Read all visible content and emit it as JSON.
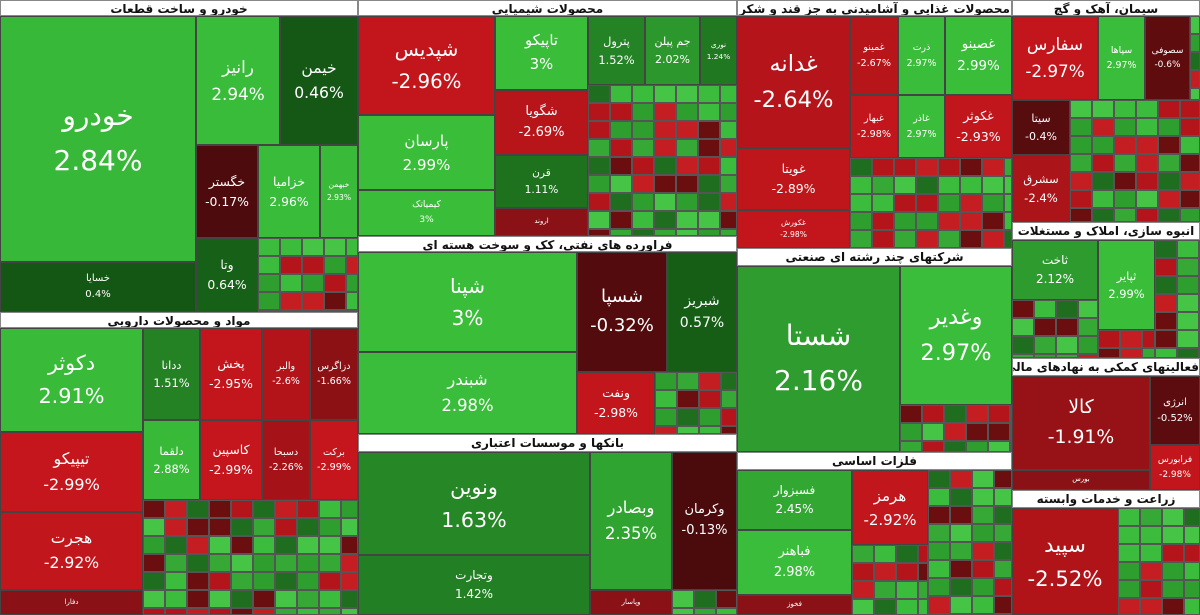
{
  "sectors": [
    {
      "title": "خودرو و ساخت قطعات",
      "tiles": [
        {
          "name": "خودرو",
          "change": "2.84%"
        },
        {
          "name": "رانیز",
          "change": "2.94%"
        },
        {
          "name": "خیمن",
          "change": "0.46%"
        },
        {
          "name": "خگستر",
          "change": "-0.17%"
        },
        {
          "name": "خزامیا",
          "change": "2.96%"
        },
        {
          "name": "خبهمن",
          "change": "2.93%"
        },
        {
          "name": "خسایا",
          "change": "0.4%"
        },
        {
          "name": "وتا",
          "change": "0.64%"
        }
      ]
    },
    {
      "title": "مواد و محصولات دارویی",
      "tiles": [
        {
          "name": "دکوثر",
          "change": "2.91%"
        },
        {
          "name": "تیپیکو",
          "change": "-2.99%"
        },
        {
          "name": "هجرت",
          "change": "-2.92%"
        },
        {
          "name": "دفارا"
        },
        {
          "name": "ددانا",
          "change": "1.51%"
        },
        {
          "name": "پخش",
          "change": "-2.95%"
        },
        {
          "name": "والبر",
          "change": "-2.6%"
        },
        {
          "name": "دزاگرس",
          "change": "-1.66%"
        },
        {
          "name": "دلقما",
          "change": "2.88%"
        },
        {
          "name": "کاسپین",
          "change": "-2.99%"
        },
        {
          "name": "دسبحا",
          "change": "-2.26%"
        },
        {
          "name": "برکت",
          "change": "-2.99%"
        }
      ]
    },
    {
      "title": "محصولات شیمیایی",
      "tiles": [
        {
          "name": "شپدیس",
          "change": "-2.96%"
        },
        {
          "name": "پارسان",
          "change": "2.99%"
        },
        {
          "name": "کیمیاتک",
          "change": "3%"
        },
        {
          "name": "تاپیکو",
          "change": "3%"
        },
        {
          "name": "شگویا",
          "change": "-2.69%"
        },
        {
          "name": "قرن",
          "change": "1.11%"
        },
        {
          "name": "اروند"
        },
        {
          "name": "پترول",
          "change": "1.52%"
        },
        {
          "name": "جم پیلن",
          "change": "2.02%"
        },
        {
          "name": "نوری",
          "change": "1.24%"
        }
      ]
    },
    {
      "title": "فراورده های نفتی، کک و سوخت هسته ای",
      "tiles": [
        {
          "name": "شپنا",
          "change": "3%"
        },
        {
          "name": "شبندر",
          "change": "2.98%"
        },
        {
          "name": "شسپا",
          "change": "-0.32%"
        },
        {
          "name": "شبریز",
          "change": "0.57%"
        },
        {
          "name": "ونفت",
          "change": "-2.98%"
        }
      ]
    },
    {
      "title": "بانکها و موسسات اعتباری",
      "tiles": [
        {
          "name": "ونوین",
          "change": "1.63%"
        },
        {
          "name": "وتجارت",
          "change": "1.42%"
        },
        {
          "name": "وبصادر",
          "change": "2.35%"
        },
        {
          "name": "وکرمان",
          "change": "-0.13%"
        },
        {
          "name": "وپاسار"
        }
      ]
    },
    {
      "title": "محصولات غذایی و آشامیدنی به جز قند و شکر",
      "tiles": [
        {
          "name": "غدانه",
          "change": "-2.64%"
        },
        {
          "name": "غویتا",
          "change": "-2.89%"
        },
        {
          "name": "غکورش",
          "change": "-2.98%"
        },
        {
          "name": "غمینو",
          "change": "-2.67%"
        },
        {
          "name": "ذرت",
          "change": "2.97%"
        },
        {
          "name": "غصینو",
          "change": "2.99%"
        },
        {
          "name": "غبهار",
          "change": "-2.98%"
        },
        {
          "name": "غاذر",
          "change": "2.97%"
        },
        {
          "name": "غکوثر",
          "change": "-2.93%"
        }
      ]
    },
    {
      "title": "شرکتهای چند رشته ای صنعتی",
      "tiles": [
        {
          "name": "شستا",
          "change": "2.16%"
        },
        {
          "name": "وغدیر",
          "change": "2.97%"
        }
      ]
    },
    {
      "title": "فلزات اساسی",
      "tiles": [
        {
          "name": "فسبزوار",
          "change": "2.45%"
        },
        {
          "name": "فباهنر",
          "change": "2.98%"
        },
        {
          "name": "فخوز"
        },
        {
          "name": "هرمز",
          "change": "-2.92%"
        }
      ]
    },
    {
      "title": "سیمان، آهک و گچ",
      "tiles": [
        {
          "name": "سفارس",
          "change": "-2.97%"
        },
        {
          "name": "سپاها",
          "change": "2.97%"
        },
        {
          "name": "سصوفی",
          "change": "-0.6%"
        },
        {
          "name": "سیتا",
          "change": "-0.4%"
        },
        {
          "name": "سشرق",
          "change": "-2.4%"
        }
      ]
    },
    {
      "title": "انبوه سازی، املاک و مستغلات",
      "tiles": [
        {
          "name": "ثاخت",
          "change": "2.12%"
        },
        {
          "name": "ثپایر",
          "change": "2.99%"
        }
      ]
    },
    {
      "title": "فعالیتهای کمکی به نهادهای مالی واسط",
      "tiles": [
        {
          "name": "کالا",
          "change": "-1.91%"
        },
        {
          "name": "انرژی",
          "change": "-0.52%"
        },
        {
          "name": "فرابورس",
          "change": "-2.98%"
        },
        {
          "name": "بورس"
        }
      ]
    },
    {
      "title": "زراعت و خدمات وابسته",
      "tiles": [
        {
          "name": "سپید",
          "change": "-2.52%"
        }
      ]
    }
  ]
}
